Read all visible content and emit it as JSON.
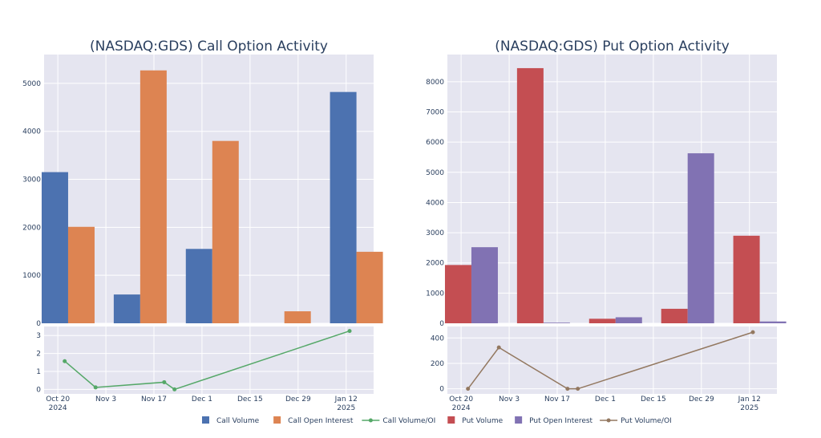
{
  "chart_data": [
    {
      "type": "bar",
      "title": "(NASDAQ:GDS) Call Option Activity",
      "categories": [
        "Oct 23 2024",
        "Nov 13 2024",
        "Dec 4 2024",
        "Dec 25 2024",
        "Jan 15 2025"
      ],
      "series": [
        {
          "name": "Call Volume",
          "color": "#4c72b0",
          "values": [
            3150,
            600,
            1550,
            0,
            4820
          ]
        },
        {
          "name": "Call Open Interest",
          "color": "#dd8452",
          "values": [
            2010,
            5270,
            3800,
            250,
            1490
          ]
        }
      ],
      "ylim": [
        0,
        5600
      ],
      "yticks": [
        0,
        1000,
        2000,
        3000,
        4000,
        5000
      ],
      "line": {
        "name": "Call Volume/OI",
        "color": "#55a868",
        "points": [
          {
            "x": "2024-10-22",
            "y": 1.57
          },
          {
            "x": "2024-10-31",
            "y": 0.11
          },
          {
            "x": "2024-11-20",
            "y": 0.4
          },
          {
            "x": "2024-11-23",
            "y": 0.0
          },
          {
            "x": "2025-01-13",
            "y": 3.25
          }
        ],
        "ylim": [
          -0.25,
          3.5
        ],
        "yticks": [
          0,
          1,
          2,
          3
        ]
      }
    },
    {
      "type": "bar",
      "title": "(NASDAQ:GDS) Put Option Activity",
      "categories": [
        "Oct 23 2024",
        "Nov 13 2024",
        "Dec 4 2024",
        "Dec 25 2024",
        "Jan 15 2025"
      ],
      "series": [
        {
          "name": "Put Volume",
          "color": "#c44e52",
          "values": [
            1930,
            8450,
            150,
            480,
            2900
          ]
        },
        {
          "name": "Put Open Interest",
          "color": "#8172b3",
          "values": [
            2520,
            20,
            200,
            5630,
            60
          ]
        }
      ],
      "ylim": [
        0,
        8900
      ],
      "yticks": [
        0,
        1000,
        2000,
        3000,
        4000,
        5000,
        6000,
        7000,
        8000
      ],
      "line": {
        "name": "Put Volume/OI",
        "color": "#937860",
        "points": [
          {
            "x": "2024-10-22",
            "y": 0
          },
          {
            "x": "2024-10-31",
            "y": 325
          },
          {
            "x": "2024-11-20",
            "y": 0
          },
          {
            "x": "2024-11-23",
            "y": 0
          },
          {
            "x": "2025-01-13",
            "y": 445
          }
        ],
        "ylim": [
          -40,
          490
        ],
        "yticks": [
          0,
          200,
          400
        ]
      }
    }
  ],
  "x_axis": {
    "range": [
      "2024-10-16",
      "2025-01-20"
    ],
    "ticks": [
      {
        "date": "2024-10-20",
        "label": "Oct 20",
        "sub": "2024"
      },
      {
        "date": "2024-11-03",
        "label": "Nov 3",
        "sub": ""
      },
      {
        "date": "2024-11-17",
        "label": "Nov 17",
        "sub": ""
      },
      {
        "date": "2024-12-01",
        "label": "Dec 1",
        "sub": ""
      },
      {
        "date": "2024-12-15",
        "label": "Dec 15",
        "sub": ""
      },
      {
        "date": "2024-12-29",
        "label": "Dec 29",
        "sub": ""
      },
      {
        "date": "2025-01-12",
        "label": "Jan 12",
        "sub": "2025"
      }
    ]
  },
  "legend": [
    {
      "label": "Call Volume",
      "kind": "bar",
      "color": "#4c72b0"
    },
    {
      "label": "Call Open Interest",
      "kind": "bar",
      "color": "#dd8452"
    },
    {
      "label": "Call Volume/OI",
      "kind": "line",
      "color": "#55a868"
    },
    {
      "label": "Put Volume",
      "kind": "bar",
      "color": "#c44e52"
    },
    {
      "label": "Put Open Interest",
      "kind": "bar",
      "color": "#8172b3"
    },
    {
      "label": "Put Volume/OI",
      "kind": "line",
      "color": "#937860"
    }
  ],
  "legend_placement": "bottom-center",
  "grid": true,
  "plot_bg": "#e5e5f0"
}
